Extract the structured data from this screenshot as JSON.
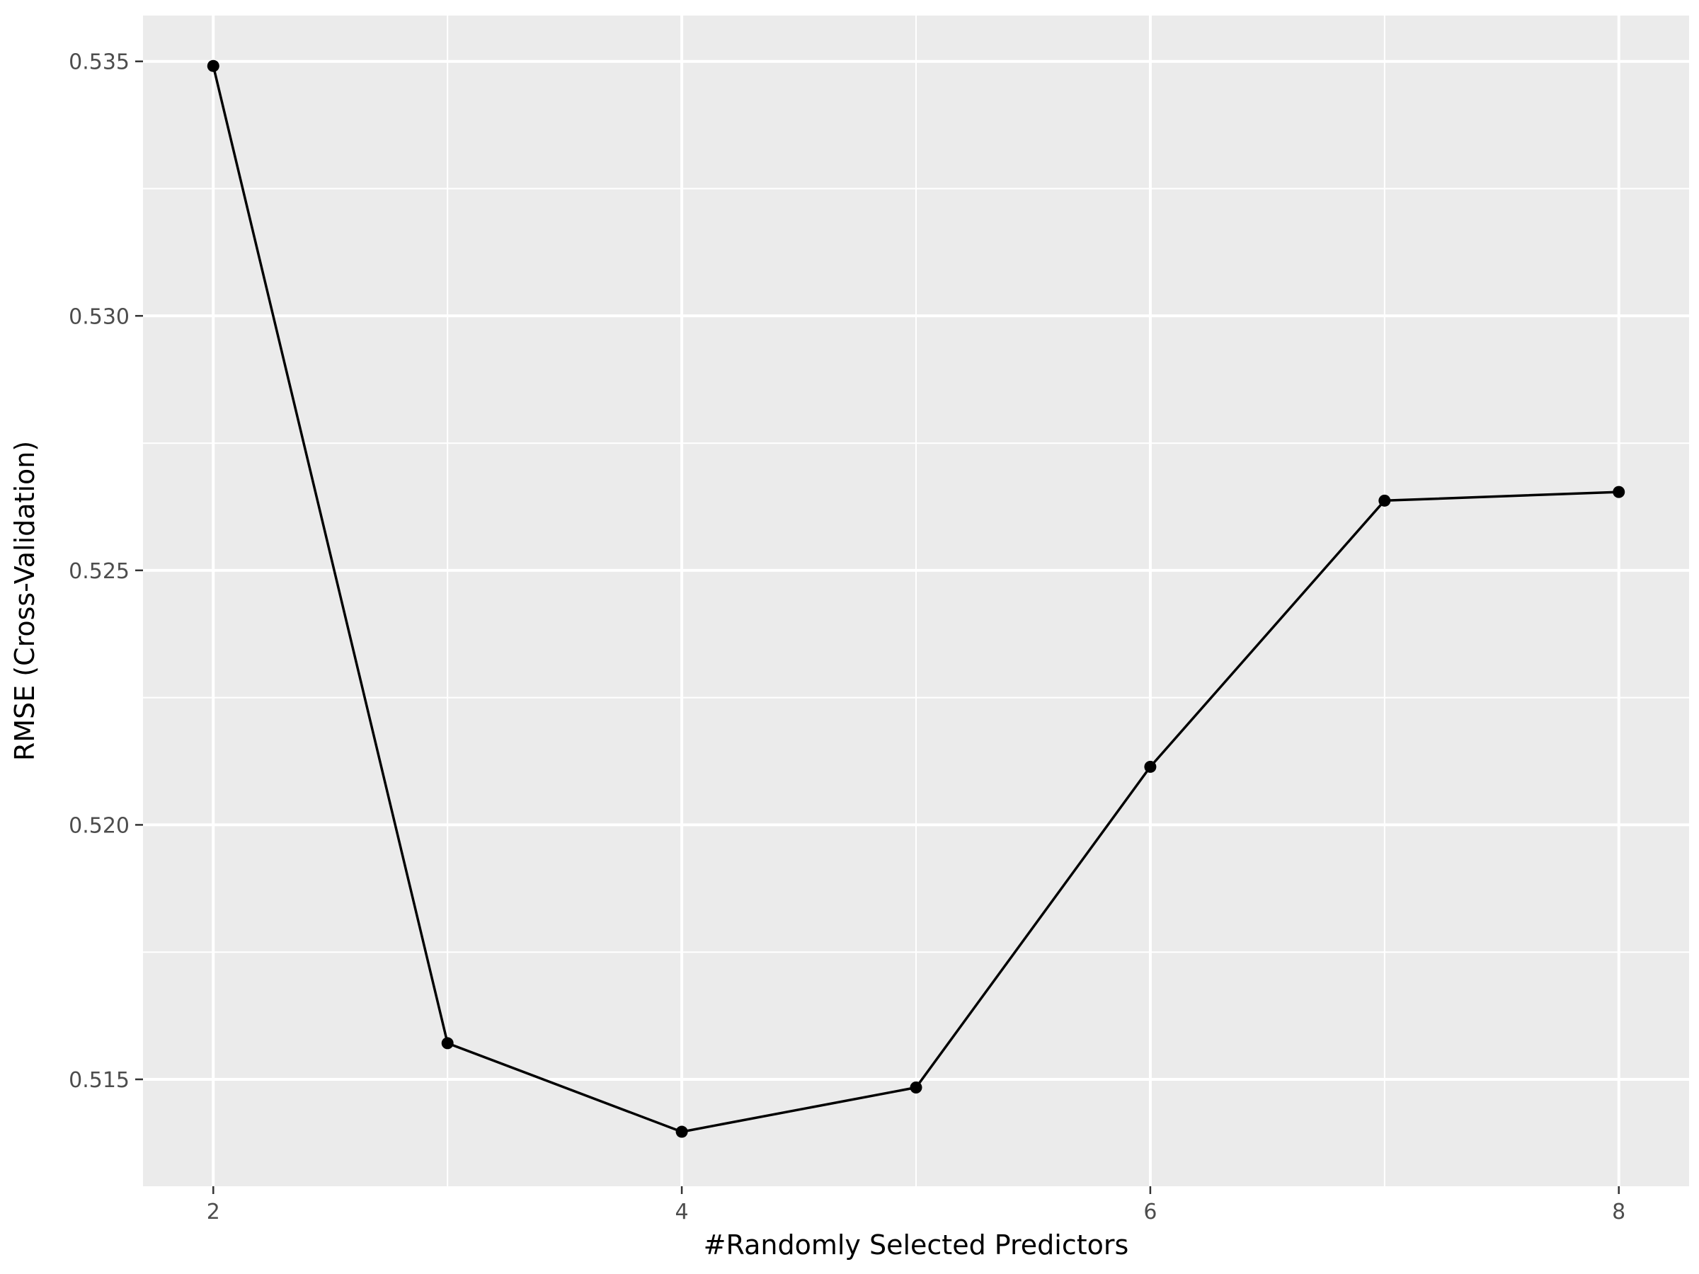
{
  "chart_data": {
    "type": "line",
    "title": "",
    "xlabel": "#Randomly Selected Predictors",
    "ylabel": "RMSE (Cross-Validation)",
    "x": [
      2,
      3,
      4,
      5,
      6,
      7,
      8
    ],
    "series": [
      {
        "values": [
          0.53491,
          0.51571,
          0.51397,
          0.51484,
          0.52114,
          0.52637,
          0.52654
        ]
      }
    ],
    "xlim": [
      1.7,
      8.3
    ],
    "ylim": [
      0.5129,
      0.5359
    ],
    "x_ticks": [
      2,
      4,
      6,
      8
    ],
    "x_tick_labels": [
      "2",
      "4",
      "6",
      "8"
    ],
    "y_ticks": [
      0.515,
      0.52,
      0.525,
      0.53,
      0.535
    ],
    "y_tick_labels": [
      "0.515",
      "0.520",
      "0.525",
      "0.530",
      "0.535"
    ],
    "grid": true,
    "legend": "none",
    "colors": {
      "panel_background": "#EBEBEB",
      "grid": "#FFFFFF",
      "line": "#000000",
      "point": "#000000",
      "tick_mark": "#333333",
      "tick_label": "#4D4D4D"
    }
  }
}
